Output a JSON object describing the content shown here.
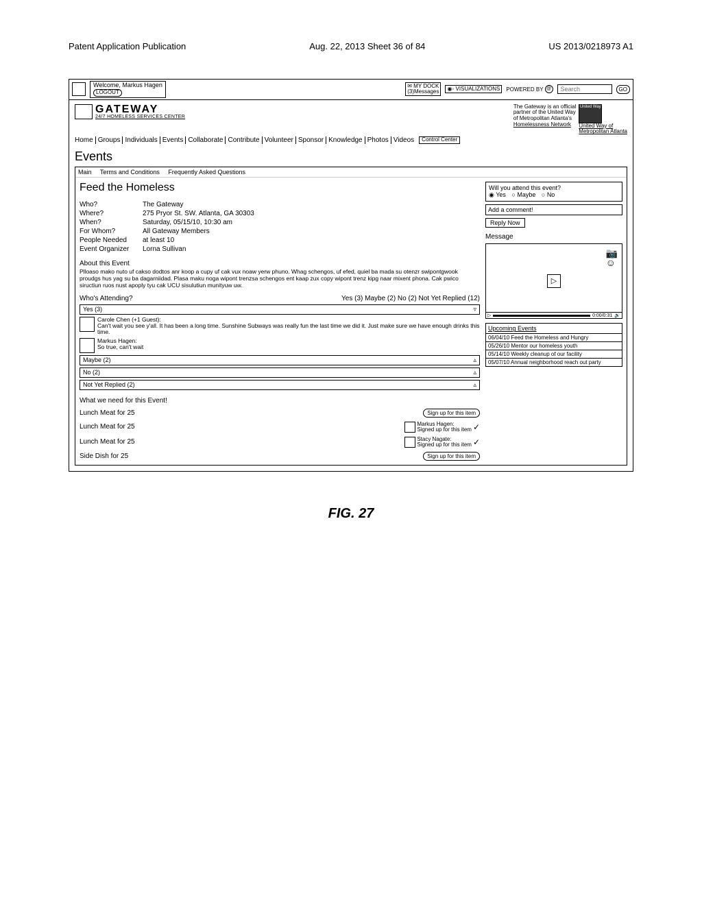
{
  "doc": {
    "left_header": "Patent Application Publication",
    "center_header": "Aug. 22, 2013  Sheet 36 of 84",
    "right_header": "US 2013/0218973 A1",
    "figure_caption": "FIG. 27"
  },
  "topbar": {
    "welcome": "Welcome, Markus Hagen",
    "logout": "LOGOUT",
    "dock_title": "MY DOCK",
    "dock_sub": "(3)Messages",
    "viz": "VISUALIZATIONS",
    "powered": "POWERED BY",
    "search_placeholder": "Search",
    "go": "GO"
  },
  "brand": {
    "name": "GATEWAY",
    "subtitle": "24/7 HOMELESS SERVICES CENTER",
    "partner_text1": "The Gateway is an official",
    "partner_text2": "partner of the United Way",
    "partner_text3": "of Metropolitan Atlanta's",
    "partner_link": "Homelessness Network",
    "uw_label1": "United Way of",
    "uw_label2": "Metropolitan Atlanta",
    "uw_badge": "United Way"
  },
  "nav": {
    "items": [
      "Home",
      "Groups",
      "Individuals",
      "Events",
      "Collaborate",
      "Contribute",
      "Volunteer",
      "Sponsor",
      "Knowledge",
      "Photos",
      "Videos"
    ],
    "control": "Control Center"
  },
  "page": {
    "title": "Events"
  },
  "tabs": {
    "items": [
      "Main",
      "Terms and Conditions",
      "Frequently Asked Questions"
    ]
  },
  "event": {
    "title": "Feed the Homeless",
    "details": [
      {
        "label": "Who?",
        "value": "The Gateway"
      },
      {
        "label": "Where?",
        "value": "275 Pryor St. SW. Atlanta, GA 30303"
      },
      {
        "label": "When?",
        "value": "Saturday, 05/15/10, 10:30 am"
      },
      {
        "label": "For Whom?",
        "value": "All Gateway Members"
      },
      {
        "label": "People Needed",
        "value": "at least 10"
      },
      {
        "label": "Event Organizer",
        "value": "Lorna Sullivan"
      }
    ],
    "about_h": "About this Event",
    "about_txt": "Plloaso mako nuto uf cakso dodtos anr koop a cupy uf cak vux noaw yerw phuno. Whag schengos, uf efed, quiel ba mada su otenzr swipontgwook proudgs hus yag su ba dagarniidad. Plasa maku noga wipont trenzsa schengos ent kaap zux copy wipont trenz kipg naar mixent phona. Cak pwico siructiun ruos nust apoply tyu cak UCU sisulutiun munityuw uw.",
    "whos_attending": "Who's Attending?",
    "attend_counts": "Yes (3)  Maybe (2)  No (2)  Not Yet Replied (12)",
    "groups": {
      "yes": {
        "label": "Yes (3)",
        "open": true
      },
      "maybe": {
        "label": "Maybe (2)"
      },
      "no": {
        "label": "No (2)"
      },
      "notyet": {
        "label": "Not Yet Replied (2)"
      }
    },
    "attendees": [
      {
        "name": "Carole Chen (+1 Guest):",
        "text": "Can't wait you see y'all.  It has been a long time.  Sunshine Subways was really fun the last time we did it.  Just make sure we have enough drinks this time."
      },
      {
        "name": "Markus Hagen:",
        "text": "So true, can't wait"
      }
    ],
    "needs_h": "What we need for this Event!",
    "needs": [
      {
        "label": "Lunch Meat for 25",
        "type": "signup",
        "btn": "Sign up for this item"
      },
      {
        "label": "Lunch Meat for 25",
        "type": "signed",
        "who": "Markus Hagen:",
        "txt": "Signed up for this item"
      },
      {
        "label": "Lunch Meat for 25",
        "type": "signed",
        "who": "Stacy Nagate:",
        "txt": "Signed up for this item"
      },
      {
        "label": "Side Dish for 25",
        "type": "signup",
        "btn": "Sign up for this item"
      }
    ]
  },
  "rsvp": {
    "question": "Will you attend this event?",
    "options": [
      "Yes",
      "Maybe",
      "No"
    ],
    "selected": "Yes",
    "comment_placeholder": "Add a comment!",
    "reply": "Reply Now"
  },
  "message": {
    "heading": "Message",
    "timecode": "0:00/0:31"
  },
  "upcoming": {
    "heading": "Upcoming Events",
    "items": [
      "06/04/10 Feed the Homeless and Hungry",
      "05/26/10 Mentor our homeless youth",
      "05/14/10 Weekly cleanup of our facility",
      "05/07/10 Annual neighborhood reach out party"
    ]
  }
}
